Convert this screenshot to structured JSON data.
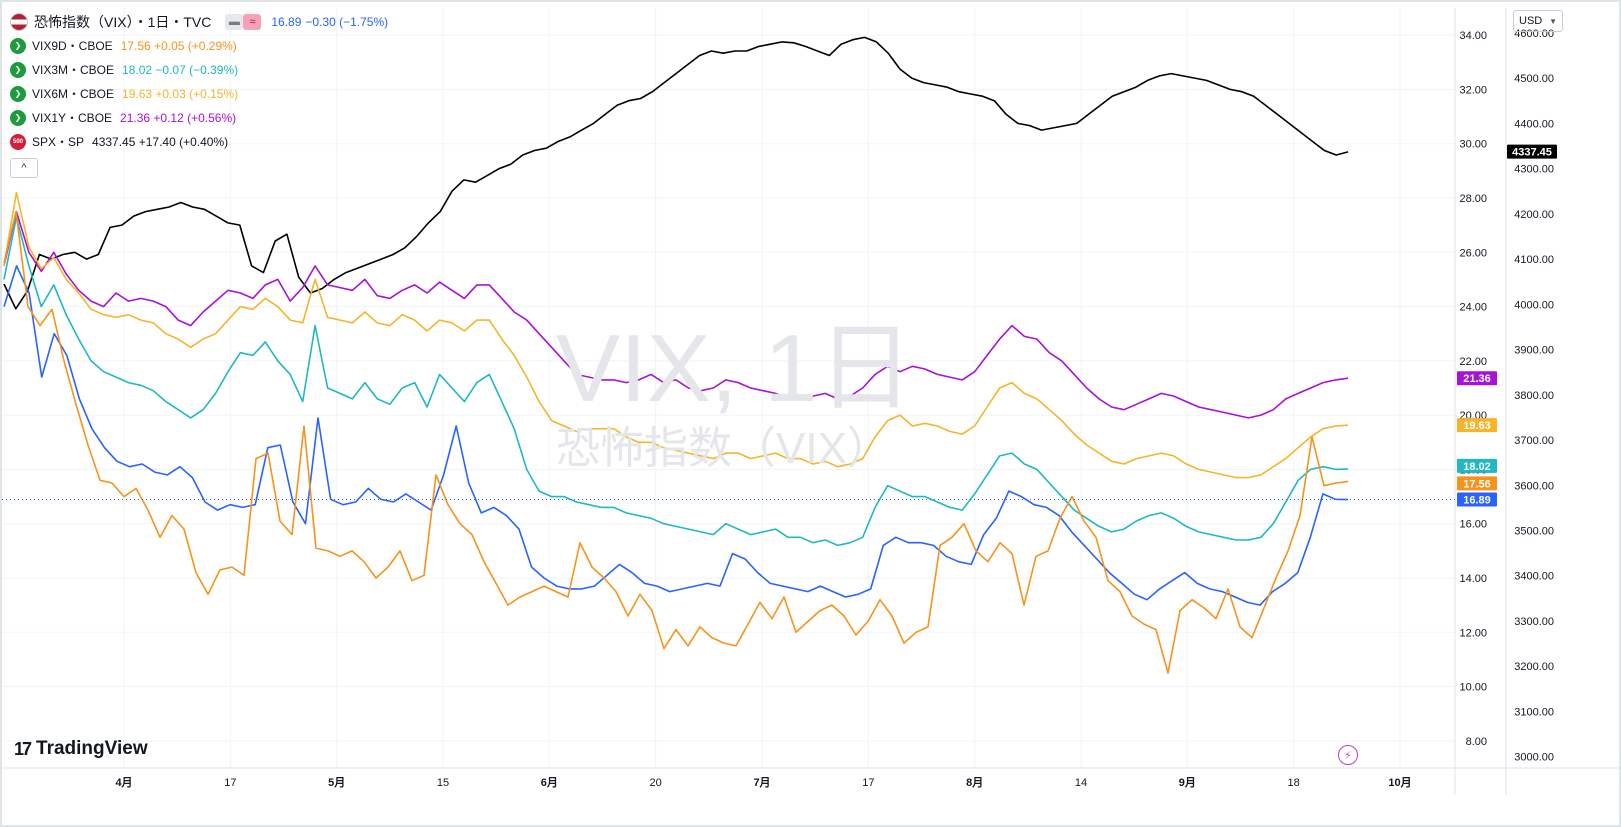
{
  "legend": {
    "main": {
      "title": "恐怖指数（VIX）・1日・TVC",
      "last": "16.89",
      "change": "−0.30 (−1.75%)",
      "color": "#2962ff"
    },
    "series": [
      {
        "sym": "VIX9D・CBOE",
        "vals": "17.56 +0.05 (+0.29%)",
        "color": "#f7931a"
      },
      {
        "sym": "VIX3M・CBOE",
        "vals": "18.02 −0.07 (−0.39%)",
        "color": "#1fb8c3"
      },
      {
        "sym": "VIX6M・CBOE",
        "vals": "19.63 +0.03 (+0.15%)",
        "color": "#f6b42a"
      },
      {
        "sym": "VIX1Y・CBOE",
        "vals": "21.36 +0.12 (+0.56%)",
        "color": "#a712d8"
      },
      {
        "sym": "SPX・SP",
        "vals": "4337.45 +17.40 (+0.40%)",
        "color": "#131722",
        "badge": "500"
      }
    ],
    "ctrl_icon": "approx-icon",
    "collapse_icon": "chevron-up-icon"
  },
  "currency": "USD",
  "logo_text": "TradingView",
  "watermark": {
    "line1": "VIX, 1日",
    "line2": "恐怖指数（VIX）"
  },
  "chart_data": {
    "type": "line",
    "x_labels": [
      "4月",
      "17",
      "5月",
      "15",
      "6月",
      "20",
      "7月",
      "17",
      "8月",
      "14",
      "9月",
      "18",
      "10月"
    ],
    "y_left_ticks": [
      "34.00",
      "32.00",
      "30.00",
      "28.00",
      "26.00",
      "24.00",
      "22.00",
      "20.00",
      "18.00",
      "16.00",
      "14.00",
      "12.00",
      "10.00",
      "8.00"
    ],
    "y_right_ticks": [
      "4600.00",
      "4500.00",
      "4400.00",
      "4300.00",
      "4200.00",
      "4100.00",
      "4000.00",
      "3900.00",
      "3800.00",
      "3700.00",
      "3600.00",
      "3500.00",
      "3400.00",
      "3300.00",
      "3200.00",
      "3100.00",
      "3000.00"
    ],
    "ylim_left": [
      7.0,
      35.0
    ],
    "ylim_right": [
      2975,
      4655
    ],
    "price_labels": [
      {
        "text": "4337.45",
        "value": 4337.45,
        "axis": "right",
        "color": "#000000"
      },
      {
        "text": "21.36",
        "value": 21.36,
        "axis": "left",
        "color": "#a712d8"
      },
      {
        "text": "19.63",
        "value": 19.63,
        "axis": "left",
        "color": "#f6b42a"
      },
      {
        "text": "18.02",
        "value": 18.02,
        "axis": "left",
        "color": "#1fb8c3"
      },
      {
        "text": "17.56",
        "value": 17.56,
        "axis": "left",
        "color": "#f7931a"
      },
      {
        "text": "16.89",
        "value": 16.89,
        "axis": "left",
        "color": "#2962ff"
      }
    ],
    "series": [
      {
        "name": "SPX",
        "axis": "right",
        "color": "#000000",
        "values": [
          4045,
          3990,
          4030,
          4110,
          4100,
          4110,
          4115,
          4100,
          4110,
          4170,
          4175,
          4195,
          4205,
          4210,
          4215,
          4225,
          4215,
          4210,
          4195,
          4180,
          4175,
          4085,
          4070,
          4140,
          4155,
          4060,
          4025,
          4035,
          4055,
          4070,
          4080,
          4090,
          4100,
          4110,
          4125,
          4150,
          4180,
          4205,
          4250,
          4275,
          4270,
          4285,
          4300,
          4310,
          4330,
          4340,
          4345,
          4360,
          4370,
          4385,
          4400,
          4420,
          4440,
          4450,
          4455,
          4470,
          4490,
          4510,
          4530,
          4550,
          4560,
          4555,
          4560,
          4560,
          4570,
          4575,
          4580,
          4578,
          4570,
          4560,
          4550,
          4575,
          4585,
          4590,
          4580,
          4555,
          4520,
          4500,
          4490,
          4485,
          4480,
          4470,
          4465,
          4460,
          4450,
          4420,
          4400,
          4395,
          4385,
          4390,
          4395,
          4400,
          4420,
          4440,
          4460,
          4470,
          4480,
          4495,
          4505,
          4510,
          4505,
          4500,
          4495,
          4485,
          4475,
          4470,
          4460,
          4440,
          4420,
          4400,
          4380,
          4360,
          4340,
          4330,
          4337
        ]
      },
      {
        "name": "VIX1Y",
        "axis": "left",
        "color": "#a712d8",
        "values": [
          25.5,
          27.5,
          26.0,
          25.3,
          26.0,
          25.2,
          24.6,
          24.2,
          24.0,
          24.5,
          24.2,
          24.3,
          24.2,
          24.0,
          23.5,
          23.3,
          23.8,
          24.2,
          24.6,
          24.5,
          24.3,
          24.8,
          25.0,
          24.2,
          24.7,
          25.5,
          24.8,
          24.7,
          24.6,
          25.0,
          24.4,
          24.3,
          24.6,
          24.8,
          24.5,
          24.9,
          24.6,
          24.3,
          24.8,
          24.8,
          24.3,
          23.8,
          23.5,
          23.0,
          22.5,
          22.0,
          21.5,
          21.4,
          21.3,
          21.3,
          21.2,
          21.3,
          21.5,
          21.2,
          21.3,
          21.0,
          20.9,
          21.0,
          21.3,
          21.2,
          21.0,
          20.9,
          20.8,
          20.6,
          20.6,
          20.7,
          20.8,
          20.6,
          20.7,
          21.0,
          21.5,
          21.8,
          21.6,
          21.8,
          21.7,
          21.5,
          21.4,
          21.3,
          21.6,
          22.2,
          22.8,
          23.3,
          22.9,
          22.8,
          22.3,
          22.0,
          21.5,
          21.0,
          20.6,
          20.3,
          20.2,
          20.4,
          20.6,
          20.8,
          20.7,
          20.5,
          20.3,
          20.2,
          20.1,
          20.0,
          19.9,
          20.0,
          20.2,
          20.6,
          20.8,
          21.0,
          21.2,
          21.3,
          21.36
        ]
      },
      {
        "name": "VIX6M",
        "axis": "left",
        "color": "#f6b42a",
        "values": [
          25.5,
          28.2,
          26.2,
          25.4,
          25.8,
          25.0,
          24.5,
          23.9,
          23.7,
          23.6,
          23.7,
          23.5,
          23.4,
          23.0,
          22.8,
          22.5,
          22.8,
          23.0,
          23.5,
          24.0,
          23.9,
          24.3,
          24.0,
          23.5,
          23.4,
          25.0,
          23.6,
          23.5,
          23.4,
          23.8,
          23.4,
          23.3,
          23.7,
          23.5,
          23.1,
          23.5,
          23.4,
          23.1,
          23.5,
          23.5,
          22.8,
          22.2,
          21.4,
          20.5,
          19.8,
          19.6,
          19.4,
          19.5,
          19.5,
          19.5,
          19.2,
          19.0,
          19.0,
          18.8,
          18.7,
          18.6,
          18.5,
          18.4,
          18.6,
          18.6,
          18.4,
          18.5,
          18.6,
          18.4,
          18.4,
          18.2,
          18.3,
          18.1,
          18.2,
          18.4,
          19.2,
          19.8,
          20.0,
          19.6,
          19.7,
          19.6,
          19.4,
          19.3,
          19.6,
          20.3,
          21.0,
          21.2,
          20.8,
          20.6,
          20.2,
          19.8,
          19.3,
          18.9,
          18.6,
          18.3,
          18.2,
          18.4,
          18.5,
          18.6,
          18.5,
          18.2,
          18.0,
          17.9,
          17.8,
          17.7,
          17.7,
          17.8,
          18.1,
          18.4,
          18.8,
          19.2,
          19.5,
          19.6,
          19.63
        ]
      },
      {
        "name": "VIX3M",
        "axis": "left",
        "color": "#1fb8c3",
        "values": [
          25.0,
          27.3,
          25.5,
          24.0,
          24.8,
          23.7,
          22.8,
          22.0,
          21.6,
          21.4,
          21.2,
          21.1,
          20.9,
          20.5,
          20.2,
          19.9,
          20.2,
          20.8,
          21.6,
          22.3,
          22.2,
          22.7,
          22.0,
          21.5,
          20.5,
          23.3,
          21.0,
          20.8,
          20.6,
          21.2,
          20.6,
          20.4,
          21.0,
          21.2,
          20.3,
          21.5,
          21.0,
          20.5,
          21.2,
          21.5,
          20.5,
          19.5,
          18.0,
          17.2,
          17.0,
          17.0,
          16.8,
          16.7,
          16.6,
          16.6,
          16.4,
          16.3,
          16.2,
          16.0,
          15.9,
          15.8,
          15.7,
          15.6,
          16.0,
          15.8,
          15.6,
          15.7,
          15.8,
          15.5,
          15.5,
          15.3,
          15.4,
          15.2,
          15.3,
          15.5,
          16.6,
          17.4,
          17.2,
          17.0,
          17.0,
          16.8,
          16.6,
          16.5,
          17.1,
          17.8,
          18.5,
          18.6,
          18.2,
          18.0,
          17.5,
          17.0,
          16.5,
          16.2,
          15.9,
          15.7,
          15.8,
          16.1,
          16.3,
          16.4,
          16.2,
          15.9,
          15.7,
          15.6,
          15.5,
          15.4,
          15.4,
          15.5,
          16.0,
          16.8,
          17.6,
          18.0,
          18.1,
          18.0,
          18.02
        ]
      },
      {
        "name": "VIX",
        "axis": "left",
        "color": "#2962ff",
        "values": [
          24.0,
          25.5,
          24.5,
          21.4,
          23.0,
          22.2,
          20.6,
          19.5,
          18.8,
          18.3,
          18.1,
          18.2,
          17.9,
          17.8,
          18.1,
          17.7,
          16.8,
          16.5,
          16.7,
          16.6,
          16.7,
          18.8,
          18.9,
          16.8,
          16.0,
          19.9,
          16.9,
          16.7,
          16.8,
          17.3,
          16.9,
          16.8,
          17.1,
          16.8,
          16.5,
          17.8,
          19.6,
          17.5,
          16.4,
          16.6,
          16.3,
          15.8,
          14.4,
          14.0,
          13.7,
          13.6,
          13.6,
          13.7,
          14.1,
          14.5,
          14.2,
          13.8,
          13.7,
          13.5,
          13.6,
          13.7,
          13.8,
          13.7,
          14.9,
          14.7,
          14.2,
          13.8,
          13.7,
          13.6,
          13.5,
          13.7,
          13.5,
          13.3,
          13.4,
          13.6,
          15.2,
          15.5,
          15.3,
          15.3,
          15.2,
          14.8,
          14.6,
          14.5,
          15.6,
          16.2,
          17.2,
          17.0,
          16.7,
          16.6,
          16.3,
          15.7,
          15.2,
          14.7,
          14.2,
          13.8,
          13.4,
          13.2,
          13.6,
          13.9,
          14.2,
          13.8,
          13.6,
          13.5,
          13.3,
          13.1,
          13.0,
          13.5,
          13.8,
          14.2,
          15.5,
          17.1,
          16.9,
          16.89
        ]
      },
      {
        "name": "VIX9D",
        "axis": "left",
        "color": "#f7931a",
        "values": [
          25.6,
          27.5,
          24.0,
          23.3,
          23.9,
          22.0,
          20.4,
          18.9,
          17.6,
          17.5,
          17.0,
          17.3,
          16.5,
          15.5,
          16.3,
          15.8,
          14.2,
          13.4,
          14.3,
          14.4,
          14.1,
          18.4,
          18.6,
          16.1,
          15.6,
          19.6,
          15.1,
          15.0,
          14.8,
          15.0,
          14.6,
          14.0,
          14.4,
          15.0,
          13.9,
          14.1,
          17.8,
          16.7,
          16.0,
          15.6,
          14.6,
          13.8,
          13.0,
          13.3,
          13.5,
          13.7,
          13.5,
          13.3,
          15.3,
          14.4,
          14.0,
          13.5,
          12.6,
          13.4,
          12.8,
          11.4,
          12.1,
          11.5,
          12.2,
          11.8,
          11.6,
          11.5,
          12.3,
          13.1,
          12.5,
          13.3,
          12.0,
          12.4,
          12.8,
          13.0,
          12.6,
          11.9,
          12.4,
          13.2,
          12.6,
          11.6,
          12.0,
          12.2,
          15.2,
          15.5,
          16.0,
          15.0,
          14.6,
          15.3,
          14.9,
          13.0,
          14.8,
          15.0,
          16.2,
          17.0,
          16.1,
          15.5,
          13.9,
          13.5,
          12.6,
          12.3,
          12.1,
          10.5,
          12.8,
          13.2,
          12.9,
          12.5,
          13.6,
          12.2,
          11.8,
          12.9,
          14.0,
          15.0,
          16.3,
          19.2,
          17.4,
          17.5,
          17.56
        ]
      }
    ]
  }
}
